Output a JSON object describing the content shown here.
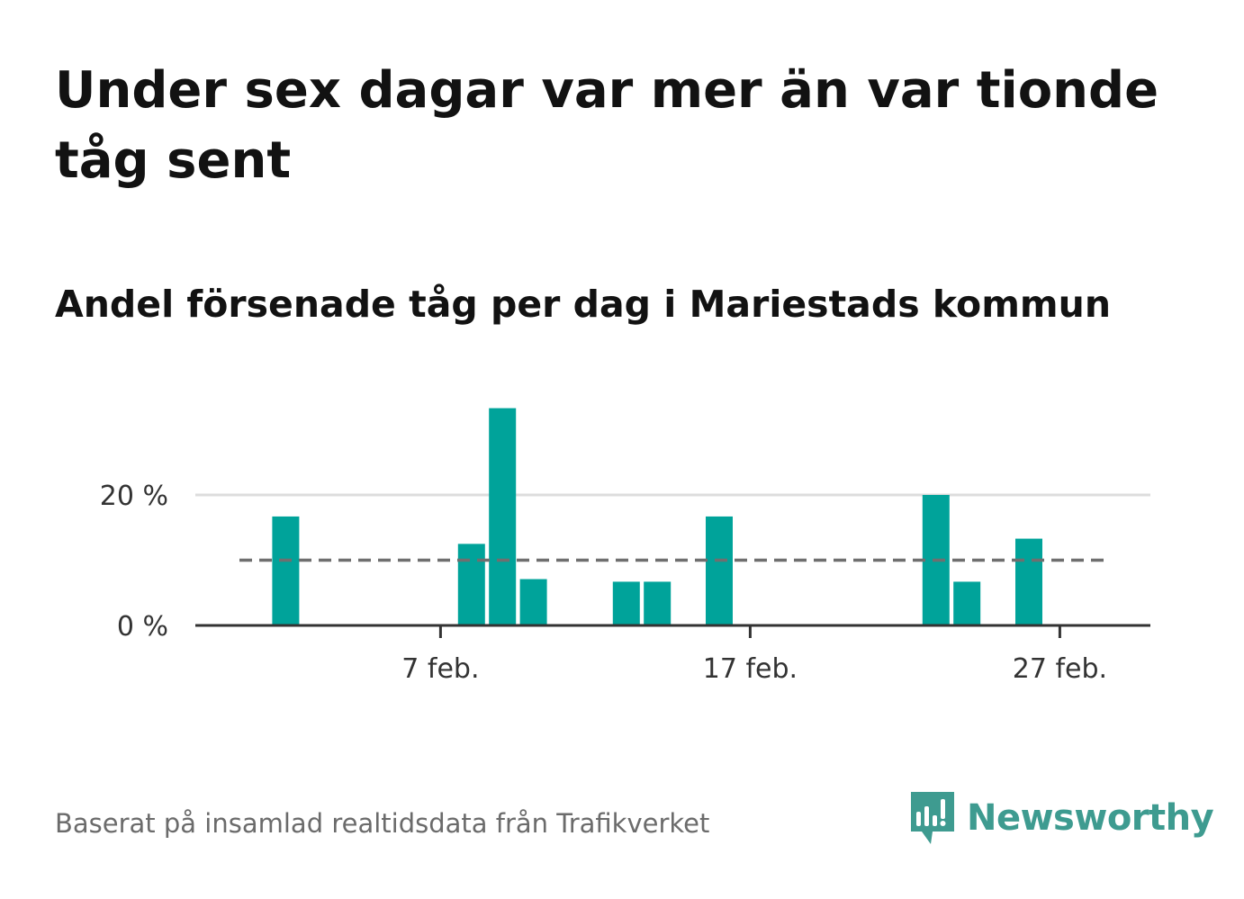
{
  "title": "Under sex dagar var mer än var tionde tåg sent",
  "subtitle": "Andel försenade tåg per dag i Mariestads kommun",
  "footer": "Baserat på insamlad realtidsdata från Trafikverket",
  "logo_text": "Newsworthy",
  "colors": {
    "bar": "#00a39a",
    "reference_line": "#6f6f6f",
    "grid": "#dddddd",
    "axis": "#333333",
    "logo": "#3e9b90"
  },
  "chart_data": {
    "type": "bar",
    "x_unit": "day of February",
    "x": [
      1,
      2,
      3,
      4,
      5,
      6,
      7,
      8,
      9,
      10,
      11,
      12,
      13,
      14,
      15,
      16,
      17,
      18,
      19,
      20,
      21,
      22,
      23,
      24,
      25,
      26,
      27,
      28
    ],
    "values": [
      0,
      16.7,
      0,
      0,
      0,
      0,
      0,
      12.5,
      33.3,
      7.1,
      0,
      0,
      6.7,
      6.7,
      0,
      16.7,
      0,
      0,
      0,
      0,
      0,
      0,
      20,
      6.7,
      0,
      13.3,
      0,
      0
    ],
    "reference_value": 10,
    "ylim": [
      0,
      35
    ],
    "y_ticks": [
      0,
      20
    ],
    "y_tick_labels": [
      "0 %",
      "20 %"
    ],
    "x_ticks": [
      7,
      17,
      27
    ],
    "x_tick_labels": [
      "7 feb.",
      "17 feb.",
      "27 feb."
    ],
    "grid": true
  }
}
